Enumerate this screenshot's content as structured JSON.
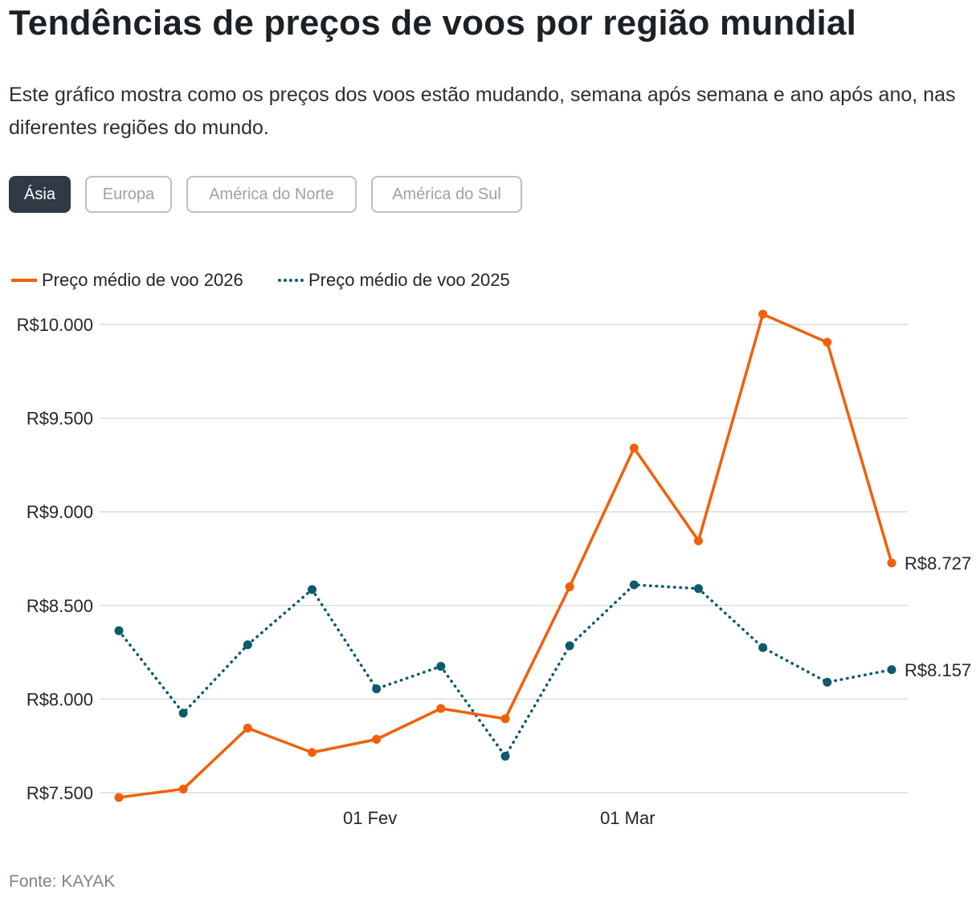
{
  "title": "Tendências de preços de voos por região mundial",
  "subtitle": "Este gráfico mostra como os preços dos voos estão mudando, semana após semana e ano após ano, nas diferentes regiões do mundo.",
  "tabs": [
    {
      "label": "Ásia",
      "active": true
    },
    {
      "label": "Europa",
      "active": false
    },
    {
      "label": "América do Norte",
      "active": false
    },
    {
      "label": "América do Sul",
      "active": false
    }
  ],
  "legend": {
    "series_2026": "Preço médio de voo 2026",
    "series_2025": "Preço médio de voo 2025"
  },
  "colors": {
    "series_2026": "#f0600a",
    "series_2025": "#0b5a6e",
    "grid": "#d9dcdf"
  },
  "source": "Fonte: KAYAK",
  "chart_data": {
    "type": "line",
    "title": "Tendências de preços de voos por região mundial",
    "xlabel": "",
    "ylabel": "",
    "ylim": [
      7500,
      10000
    ],
    "y_ticks": [
      7500,
      8000,
      8500,
      9000,
      9500,
      10000
    ],
    "y_tick_labels": [
      "R$7.500",
      "R$8.000",
      "R$8.500",
      "R$9.000",
      "R$9.500",
      "R$10.000"
    ],
    "x_points": 13,
    "x_tick_labels": [
      {
        "index": 3.9,
        "label": "01 Fev"
      },
      {
        "index": 7.9,
        "label": "01 Mar"
      }
    ],
    "grid": true,
    "legend_position": "top-left",
    "series": [
      {
        "name": "Preço médio de voo 2026",
        "style": "solid",
        "values": [
          7475,
          7520,
          7845,
          7715,
          7785,
          7950,
          7895,
          8600,
          9340,
          8845,
          10055,
          9905,
          8727
        ],
        "end_label": "R$8.727"
      },
      {
        "name": "Preço médio de voo 2025",
        "style": "dotted",
        "values": [
          8365,
          7925,
          8290,
          8585,
          8055,
          8175,
          7695,
          8285,
          8610,
          8590,
          8275,
          8090,
          8157
        ],
        "end_label": "R$8.157"
      }
    ]
  }
}
